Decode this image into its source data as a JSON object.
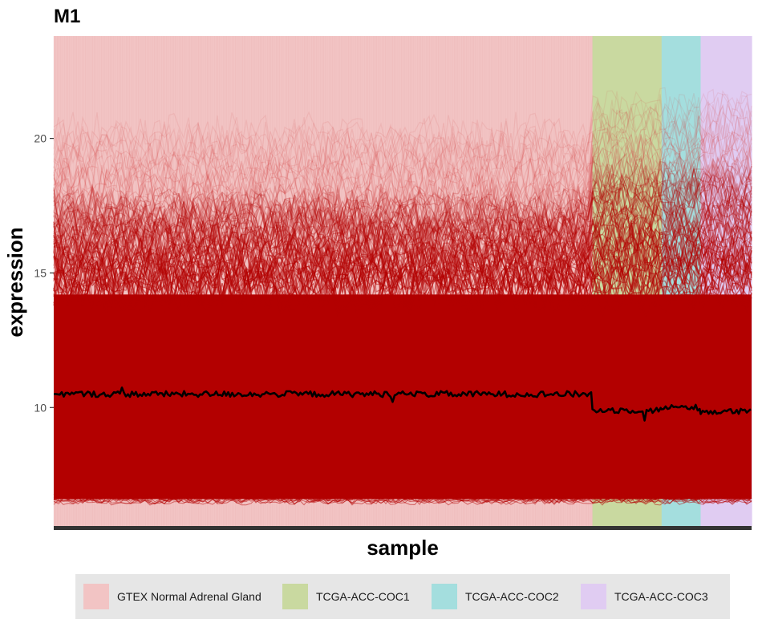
{
  "chart_data": {
    "type": "line",
    "title": "M1",
    "xlabel": "sample",
    "ylabel": "expression",
    "ylim": [
      5.6,
      23.8
    ],
    "y_ticks": [
      10,
      15,
      20
    ],
    "y_tick_labels": [
      "10",
      "15",
      "20"
    ],
    "x_tick_labels": [],
    "grid": false,
    "legend_position": "bottom",
    "groups": [
      {
        "name": "GTEX Normal Adrenal Gland",
        "color": "#f2c4c4",
        "sample_fraction": 0.772
      },
      {
        "name": "TCGA-ACC-COC1",
        "color": "#c9d9a0",
        "sample_fraction": 0.099
      },
      {
        "name": "TCGA-ACC-COC2",
        "color": "#a4dede",
        "sample_fraction": 0.056
      },
      {
        "name": "TCGA-ACC-COC3",
        "color": "#e0ccf2",
        "sample_fraction": 0.073
      }
    ],
    "series": [
      {
        "description_key": "mean",
        "color": "#000000",
        "segments": [
          {
            "group": 0,
            "level": 10.5
          },
          {
            "group": 1,
            "level": 9.9
          },
          {
            "group": 2,
            "level": 10.0
          },
          {
            "group": 3,
            "level": 9.85
          }
        ]
      }
    ],
    "band": {
      "color": "#b30000",
      "core_low": 6.6,
      "core_high": 14.2,
      "upper_group0": 17.6,
      "upper_other": 18.8
    }
  }
}
